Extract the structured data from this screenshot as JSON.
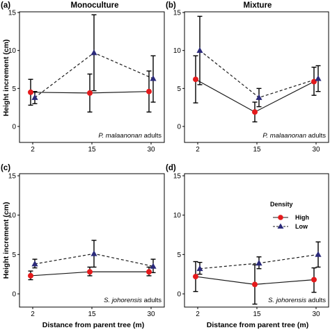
{
  "figure": {
    "xlabel": "Distance from parent tree (m)",
    "ylabel": "Height increment (cm)",
    "colors": {
      "High": "#e41a1c",
      "Low": "#2b2a7a",
      "line": "#1a1a1a",
      "errorbar": "#000000"
    }
  },
  "legend": {
    "title": "Density",
    "items": [
      {
        "name": "High",
        "marker": "circle"
      },
      {
        "name": "Low",
        "marker": "triangle"
      }
    ]
  },
  "chart_data": [
    {
      "type": "line",
      "panel": "(a)",
      "title": "Monoculture",
      "annotation": {
        "species": "P. malaanonan",
        "suffix": " adults"
      },
      "x": [
        2,
        15,
        30
      ],
      "xticks": [
        "2",
        "15",
        "30"
      ],
      "ylim": [
        0,
        16
      ],
      "yticks": [
        0,
        5,
        10,
        15
      ],
      "grid": false,
      "series": [
        {
          "name": "High",
          "linestyle": "solid",
          "values": [
            4.5,
            4.4,
            4.6
          ],
          "lower": [
            2.8,
            1.9,
            1.9
          ],
          "upper": [
            6.2,
            6.9,
            7.3
          ]
        },
        {
          "name": "Low",
          "linestyle": "dashed",
          "values": [
            3.8,
            9.7,
            6.3
          ],
          "lower": [
            3.0,
            4.7,
            3.2
          ],
          "upper": [
            4.6,
            14.7,
            9.3
          ]
        }
      ]
    },
    {
      "type": "line",
      "panel": "(b)",
      "title": "Mixture",
      "annotation": {
        "species": "P. malaanonan",
        "suffix": " adults"
      },
      "x": [
        2,
        15,
        30
      ],
      "xticks": [
        "2",
        "15",
        "30"
      ],
      "ylim": [
        0,
        16
      ],
      "yticks": [
        0,
        5,
        10,
        15
      ],
      "grid": false,
      "series": [
        {
          "name": "High",
          "linestyle": "solid",
          "values": [
            6.2,
            1.9,
            5.9
          ],
          "lower": [
            3.1,
            0.6,
            4.1
          ],
          "upper": [
            9.3,
            3.2,
            7.8
          ]
        },
        {
          "name": "Low",
          "linestyle": "dashed",
          "values": [
            10.0,
            3.8,
            6.3
          ],
          "lower": [
            5.5,
            2.6,
            4.6
          ],
          "upper": [
            14.5,
            5.0,
            8.0
          ]
        }
      ]
    },
    {
      "type": "line",
      "panel": "(c)",
      "title": "",
      "annotation": {
        "species": "S. johorensis",
        "suffix": " adults"
      },
      "x": [
        2,
        15,
        30
      ],
      "xticks": [
        "2",
        "15",
        "30"
      ],
      "ylim": [
        0,
        16
      ],
      "yticks": [
        0,
        5,
        10,
        15
      ],
      "grid": false,
      "series": [
        {
          "name": "High",
          "linestyle": "solid",
          "values": [
            2.3,
            2.8,
            2.8
          ],
          "lower": [
            1.8,
            2.3,
            2.3
          ],
          "upper": [
            2.9,
            3.4,
            3.4
          ]
        },
        {
          "name": "Low",
          "linestyle": "dashed",
          "values": [
            3.8,
            5.1,
            3.5
          ],
          "lower": [
            3.3,
            3.4,
            2.7
          ],
          "upper": [
            4.4,
            6.8,
            4.4
          ]
        }
      ]
    },
    {
      "type": "line",
      "panel": "(d)",
      "title": "",
      "annotation": {
        "species": "S. johorensis",
        "suffix": " adults"
      },
      "x": [
        2,
        15,
        30
      ],
      "xticks": [
        "2",
        "15",
        "30"
      ],
      "ylim": [
        0,
        16
      ],
      "yticks": [
        0,
        5,
        10,
        15
      ],
      "grid": false,
      "series": [
        {
          "name": "High",
          "linestyle": "solid",
          "values": [
            2.2,
            1.2,
            1.8
          ],
          "lower": [
            0.3,
            -1.3,
            0.2
          ],
          "upper": [
            4.1,
            3.7,
            3.3
          ]
        },
        {
          "name": "Low",
          "linestyle": "dashed",
          "values": [
            3.2,
            3.9,
            5.0
          ],
          "lower": [
            2.5,
            3.2,
            3.4
          ],
          "upper": [
            4.0,
            4.7,
            6.6
          ]
        }
      ]
    }
  ]
}
